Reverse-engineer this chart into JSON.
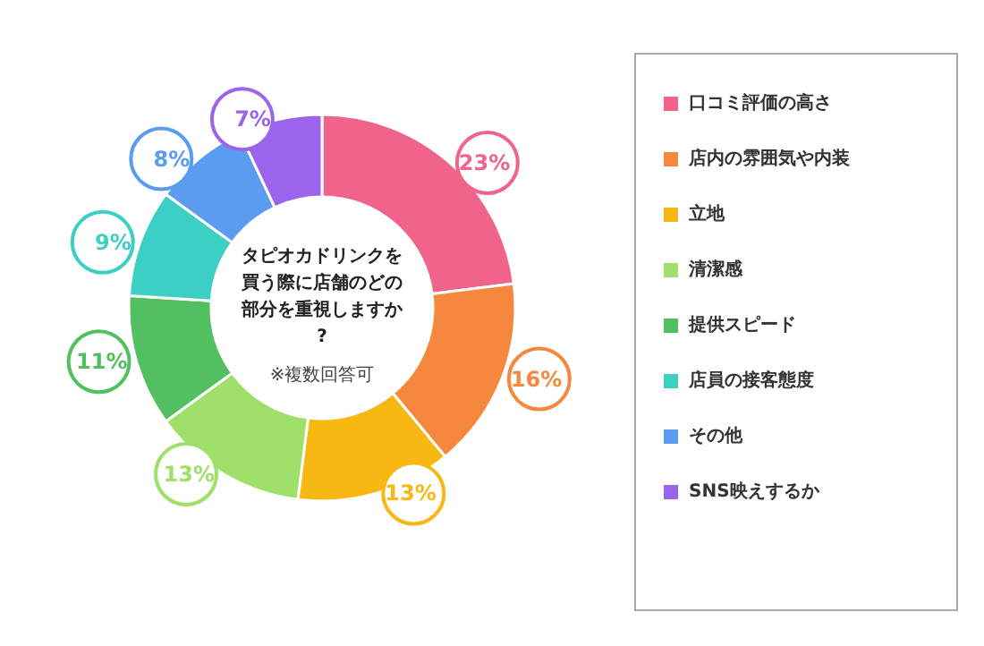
{
  "chart_data": {
    "type": "donut",
    "title": "タピオカドリンクを買う際に店舗のどの部分を重視しますか?",
    "subtitle": "※複数回答可",
    "categories": [
      "口コミ評価の高さ",
      "店内の雰囲気や内装",
      "立地",
      "清潔感",
      "提供スピード",
      "店員の接客態度",
      "その他",
      "SNS映えするか"
    ],
    "values": [
      23,
      16,
      13,
      13,
      11,
      9,
      8,
      7
    ],
    "value_labels": [
      "23%",
      "16%",
      "13%",
      "13%",
      "11%",
      "9%",
      "8%",
      "7%"
    ],
    "colors": [
      "#f0648c",
      "#f5883c",
      "#f8b814",
      "#9ee06a",
      "#52c060",
      "#3ccfc4",
      "#5c9cf0",
      "#9a64ec"
    ],
    "legend": "right"
  }
}
